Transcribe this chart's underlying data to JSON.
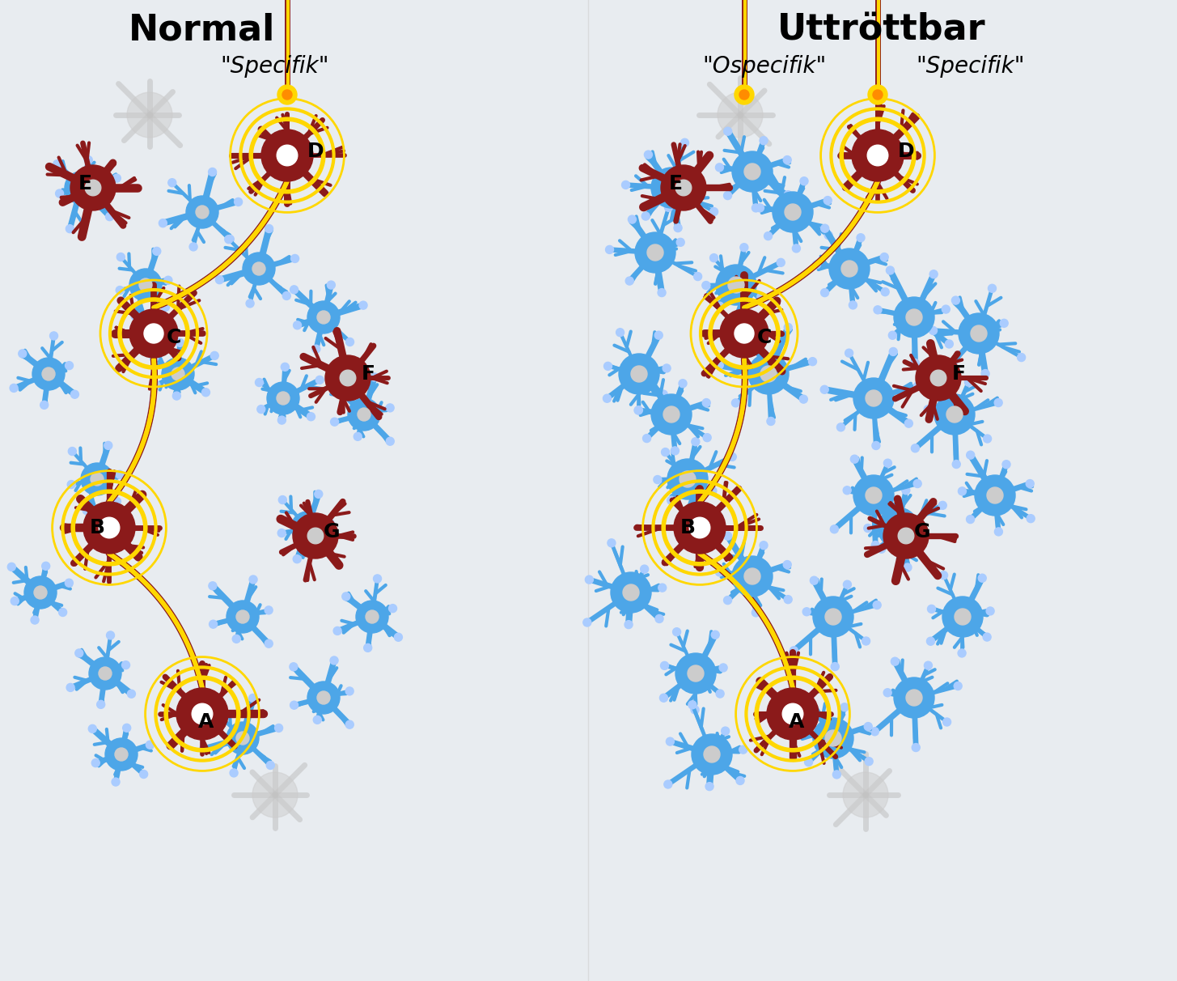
{
  "title_left": "Normal",
  "title_right": "Uttröttbar",
  "subtitle_left": "\"Specifik\"",
  "subtitle_right_left": "\"Ospecifik\"",
  "subtitle_right_right": "\"Specifik\"",
  "bg_color": "#e8e8f0",
  "dark_red": "#8B1A1A",
  "blue": "#4da6e8",
  "yellow": "#FFD700",
  "orange": "#FF8C00",
  "white": "#ffffff",
  "gray": "#aaaaaa",
  "labels": [
    "A",
    "B",
    "C",
    "D",
    "E",
    "F",
    "G"
  ],
  "title_fontsize": 32,
  "subtitle_fontsize": 20,
  "label_fontsize": 18
}
